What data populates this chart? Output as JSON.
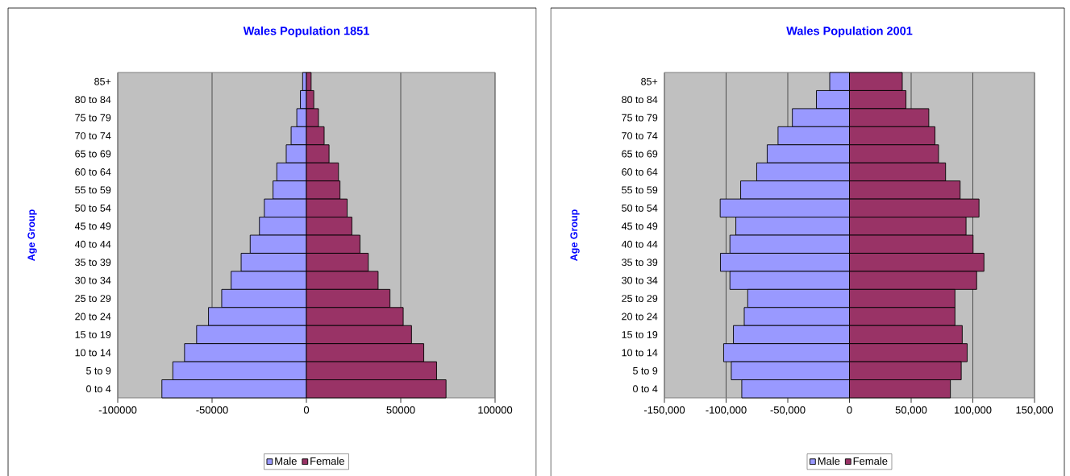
{
  "chart_data": [
    {
      "type": "bar",
      "orientation": "horizontal",
      "title": "Wales Population 1851",
      "ylabel": "Age Group",
      "categories": [
        "85+",
        "80 to 84",
        "75 to 79",
        "70 to 74",
        "65 to 69",
        "60 to 64",
        "55 to 59",
        "50 to 54",
        "45 to 49",
        "40 to 44",
        "35 to 39",
        "30 to 34",
        "25 to 29",
        "20 to 24",
        "15 to 19",
        "10 to 14",
        "5 to 9",
        "0 to 4"
      ],
      "series": [
        {
          "name": "Male",
          "color": "#9999ff",
          "values": [
            -2000,
            -3200,
            -5100,
            -8100,
            -10700,
            -15700,
            -17700,
            -22300,
            -24900,
            -29800,
            -34600,
            -39900,
            -44900,
            -51900,
            -58200,
            -64600,
            -70800,
            -76600
          ]
        },
        {
          "name": "Female",
          "color": "#993366",
          "values": [
            2500,
            3900,
            6400,
            9400,
            12000,
            17000,
            17800,
            21600,
            24100,
            28400,
            32800,
            38000,
            44300,
            51300,
            55700,
            62200,
            69000,
            74000
          ]
        }
      ],
      "xlim": [
        -100000,
        100000
      ],
      "xticks": [
        -100000,
        -50000,
        0,
        50000,
        100000
      ],
      "grid": "x",
      "legend": "bottom",
      "stacked": true
    },
    {
      "type": "bar",
      "orientation": "horizontal",
      "title": "Wales Population 2001",
      "ylabel": "Age Group",
      "categories": [
        "85+",
        "80 to 84",
        "75 to 79",
        "70 to 74",
        "65 to 69",
        "60 to 64",
        "55 to 59",
        "50 to 54",
        "45 to 49",
        "40 to 44",
        "35 to 39",
        "30 to 34",
        "25 to 29",
        "20 to 24",
        "15 to 19",
        "10 to 14",
        "5 to 9",
        "0 to 4"
      ],
      "series": [
        {
          "name": "Male",
          "color": "#9999ff",
          "values": [
            -16000,
            -26800,
            -46300,
            -57900,
            -66700,
            -75200,
            -88200,
            -104800,
            -92100,
            -96900,
            -104600,
            -96900,
            -82500,
            -85300,
            -94100,
            -102000,
            -95800,
            -87300
          ]
        },
        {
          "name": "Female",
          "color": "#993366",
          "values": [
            42800,
            45800,
            64300,
            69300,
            72200,
            77900,
            89700,
            105000,
            94500,
            100200,
            109000,
            103100,
            85500,
            85500,
            91400,
            95400,
            90600,
            81800
          ]
        }
      ],
      "xlim": [
        -150000,
        150000
      ],
      "xticks": [
        {
          "value": -150000,
          "label": "-150,000"
        },
        {
          "value": -100000,
          "label": "-100,000"
        },
        {
          "value": -50000,
          "label": "-50,000"
        },
        {
          "value": 0,
          "label": "0"
        },
        {
          "value": 50000,
          "label": "50,000"
        },
        {
          "value": 100000,
          "label": "100,000"
        },
        {
          "value": 150000,
          "label": "150,000"
        }
      ],
      "grid": "x",
      "legend": "bottom",
      "stacked": true
    }
  ]
}
